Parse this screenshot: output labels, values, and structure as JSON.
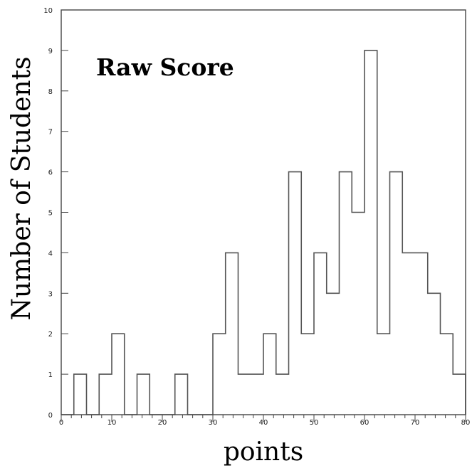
{
  "chart_data": {
    "type": "bar",
    "title": "Raw Score",
    "xlabel": "points",
    "ylabel": "Number of Students",
    "xlim": [
      0,
      80
    ],
    "ylim": [
      0,
      10
    ],
    "x_ticks": [
      0,
      10,
      20,
      30,
      40,
      50,
      60,
      70,
      80
    ],
    "y_ticks": [
      0,
      1,
      2,
      3,
      4,
      5,
      6,
      7,
      8,
      9,
      10
    ],
    "grid": false,
    "bin_width": 2.5,
    "bin_edges_start": 0,
    "values": [
      0,
      1,
      0,
      1,
      2,
      0,
      1,
      0,
      0,
      1,
      0,
      0,
      2,
      4,
      1,
      1,
      2,
      1,
      6,
      2,
      4,
      3,
      6,
      5,
      9,
      2,
      6,
      4,
      4,
      3,
      2,
      1
    ]
  }
}
